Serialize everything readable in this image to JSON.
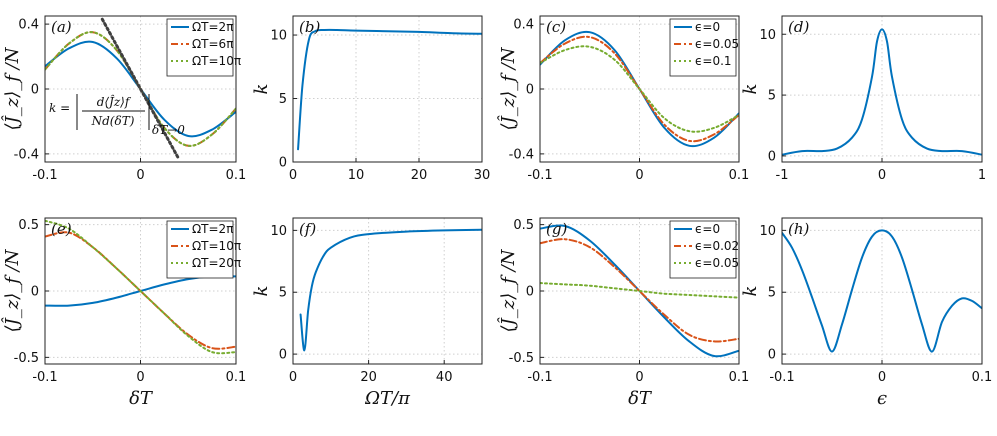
{
  "colors": {
    "blue": "#0072BD",
    "orange": "#D95319",
    "green": "#77AC30",
    "dark_gray": "#404040",
    "olive": "#9a8a3a"
  },
  "chart_data": [
    {
      "panel": "(a)",
      "type": "line",
      "xlabel": "",
      "ylabel": "⟨Ĵ_z⟩_f /N",
      "xlim": [
        -0.1,
        0.1
      ],
      "ylim": [
        -0.45,
        0.45
      ],
      "grid": true,
      "legend": "top-right",
      "xticks": [
        "-0.1",
        "0",
        "0.1"
      ],
      "xtick_values": [
        -0.1,
        0,
        0.1
      ],
      "yticks": [
        "0.4",
        "0",
        "-0.4"
      ],
      "ytick_values": [
        0.4,
        0,
        -0.4
      ],
      "annotation": "k = |d⟨Ĵ_z⟩_f / Nd(δT)| δT→0",
      "series": [
        {
          "name": "ΩT=2π",
          "color": "#0072BD",
          "dash": "solid",
          "x": [
            -0.1,
            -0.075,
            -0.05,
            -0.025,
            0,
            0.025,
            0.05,
            0.075,
            0.1
          ],
          "y": [
            0.14,
            0.25,
            0.29,
            0.19,
            0,
            -0.19,
            -0.29,
            -0.25,
            -0.14
          ]
        },
        {
          "name": "ΩT=6π",
          "color": "#D95319",
          "dash": "dashdot",
          "x": [
            -0.1,
            -0.075,
            -0.05,
            -0.025,
            0,
            0.025,
            0.05,
            0.075,
            0.1
          ],
          "y": [
            0.12,
            0.28,
            0.35,
            0.24,
            0,
            -0.24,
            -0.35,
            -0.28,
            -0.12
          ]
        },
        {
          "name": "ΩT=10π",
          "color": "#77AC30",
          "dash": "dotted",
          "x": [
            -0.1,
            -0.075,
            -0.05,
            -0.025,
            0,
            0.025,
            0.05,
            0.075,
            0.1
          ],
          "y": [
            0.12,
            0.28,
            0.35,
            0.24,
            0,
            -0.24,
            -0.35,
            -0.28,
            -0.12
          ]
        },
        {
          "name": "",
          "color": "#404040",
          "dash": "dotted",
          "x": [
            -0.04,
            0.04
          ],
          "y": [
            0.43,
            -0.43
          ]
        }
      ]
    },
    {
      "panel": "(b)",
      "type": "line",
      "xlabel": "",
      "ylabel": "k",
      "xlim": [
        0,
        30
      ],
      "ylim": [
        0,
        11.5
      ],
      "grid": true,
      "xticks": [
        "0",
        "10",
        "20",
        "30"
      ],
      "xtick_values": [
        0,
        10,
        20,
        30
      ],
      "yticks": [
        "0",
        "5",
        "10"
      ],
      "ytick_values": [
        0,
        5,
        10
      ],
      "series": [
        {
          "name": "",
          "color": "#0072BD",
          "dash": "solid",
          "x": [
            0.8,
            1.5,
            2.5,
            3.5,
            5,
            7,
            10,
            15,
            20,
            25,
            30
          ],
          "y": [
            1.0,
            6.0,
            9.6,
            10.3,
            10.4,
            10.4,
            10.35,
            10.3,
            10.25,
            10.15,
            10.1
          ]
        }
      ]
    },
    {
      "panel": "(c)",
      "type": "line",
      "xlabel": "",
      "ylabel": "⟨Ĵ_z⟩_f /N",
      "xlim": [
        -0.1,
        0.1
      ],
      "ylim": [
        -0.45,
        0.45
      ],
      "grid": true,
      "legend": "top-right",
      "xticks": [
        "-0.1",
        "0",
        "0.1"
      ],
      "xtick_values": [
        -0.1,
        0,
        0.1
      ],
      "yticks": [
        "0.4",
        "0",
        "-0.4"
      ],
      "ytick_values": [
        0.4,
        0,
        -0.4
      ],
      "series": [
        {
          "name": "ϵ=0",
          "color": "#0072BD",
          "dash": "solid",
          "x": [
            -0.1,
            -0.075,
            -0.05,
            -0.025,
            0,
            0.025,
            0.05,
            0.075,
            0.1
          ],
          "y": [
            0.15,
            0.3,
            0.35,
            0.24,
            0,
            -0.24,
            -0.35,
            -0.3,
            -0.15
          ]
        },
        {
          "name": "ϵ=0.05",
          "color": "#D95319",
          "dash": "dashdot",
          "x": [
            -0.1,
            -0.075,
            -0.05,
            -0.025,
            0,
            0.025,
            0.05,
            0.075,
            0.1
          ],
          "y": [
            0.16,
            0.28,
            0.32,
            0.22,
            0,
            -0.22,
            -0.32,
            -0.28,
            -0.16
          ]
        },
        {
          "name": "ϵ=0.1",
          "color": "#77AC30",
          "dash": "dotted",
          "x": [
            -0.1,
            -0.075,
            -0.05,
            -0.025,
            0,
            0.025,
            0.05,
            0.075,
            0.1
          ],
          "y": [
            0.16,
            0.24,
            0.26,
            0.18,
            0,
            -0.18,
            -0.26,
            -0.24,
            -0.16
          ]
        }
      ]
    },
    {
      "panel": "(d)",
      "type": "line",
      "xlabel": "",
      "ylabel": "k",
      "xlim": [
        -1,
        1
      ],
      "ylim": [
        -0.5,
        11.5
      ],
      "grid": true,
      "xticks": [
        "-1",
        "0",
        "1"
      ],
      "xtick_values": [
        -1,
        0,
        1
      ],
      "yticks": [
        "0",
        "5",
        "10"
      ],
      "ytick_values": [
        0,
        5,
        10
      ],
      "series": [
        {
          "name": "",
          "color": "#0072BD",
          "dash": "solid",
          "x": [
            -1,
            -0.8,
            -0.6,
            -0.45,
            -0.3,
            -0.2,
            -0.1,
            -0.05,
            0,
            0.05,
            0.1,
            0.2,
            0.3,
            0.45,
            0.6,
            0.8,
            1
          ],
          "y": [
            0.1,
            0.4,
            0.4,
            0.6,
            1.5,
            3.0,
            6.5,
            9.4,
            10.4,
            9.4,
            6.5,
            3.0,
            1.5,
            0.6,
            0.4,
            0.4,
            0.1
          ]
        }
      ]
    },
    {
      "panel": "(e)",
      "type": "line",
      "xlabel": "δT",
      "ylabel": "⟨Ĵ_z⟩_f /N",
      "xlim": [
        -0.1,
        0.1
      ],
      "ylim": [
        -0.55,
        0.55
      ],
      "grid": true,
      "legend": "top-right",
      "xticks": [
        "-0.1",
        "0",
        "0.1"
      ],
      "xtick_values": [
        -0.1,
        0,
        0.1
      ],
      "yticks": [
        "0.5",
        "0",
        "-0.5"
      ],
      "ytick_values": [
        0.5,
        0,
        -0.5
      ],
      "series": [
        {
          "name": "ΩT=2π",
          "color": "#0072BD",
          "dash": "solid",
          "x": [
            -0.1,
            -0.075,
            -0.05,
            -0.025,
            0,
            0.025,
            0.05,
            0.075,
            0.1
          ],
          "y": [
            -0.11,
            -0.11,
            -0.09,
            -0.05,
            0,
            0.05,
            0.09,
            0.11,
            0.11
          ]
        },
        {
          "name": "ΩT=10π",
          "color": "#D95319",
          "dash": "dashdot",
          "x": [
            -0.1,
            -0.075,
            -0.05,
            -0.025,
            0,
            0.025,
            0.05,
            0.075,
            0.1
          ],
          "y": [
            0.41,
            0.44,
            0.33,
            0.17,
            0,
            -0.17,
            -0.33,
            -0.43,
            -0.42
          ]
        },
        {
          "name": "ΩT=20π",
          "color": "#77AC30",
          "dash": "dotted",
          "x": [
            -0.1,
            -0.075,
            -0.05,
            -0.025,
            0,
            0.025,
            0.05,
            0.075,
            0.1
          ],
          "y": [
            0.53,
            0.47,
            0.33,
            0.17,
            0,
            -0.17,
            -0.34,
            -0.46,
            -0.46
          ]
        }
      ]
    },
    {
      "panel": "(f)",
      "type": "line",
      "xlabel": "ΩT/π",
      "ylabel": "k",
      "xlim": [
        0,
        50
      ],
      "ylim": [
        -0.8,
        11
      ],
      "grid": true,
      "xticks": [
        "0",
        "20",
        "40"
      ],
      "xtick_values": [
        0,
        20,
        40
      ],
      "yticks": [
        "0",
        "5",
        "10"
      ],
      "ytick_values": [
        0,
        5,
        10
      ],
      "series": [
        {
          "name": "",
          "color": "#0072BD",
          "dash": "solid",
          "x": [
            2,
            3,
            4,
            5,
            6,
            8,
            10,
            15,
            20,
            30,
            40,
            50
          ],
          "y": [
            3.2,
            0.3,
            3.5,
            5.5,
            6.6,
            7.9,
            8.6,
            9.4,
            9.7,
            9.9,
            10.0,
            10.05
          ]
        }
      ]
    },
    {
      "panel": "(g)",
      "type": "line",
      "xlabel": "δT",
      "ylabel": "⟨Ĵ_z⟩_f /N",
      "xlim": [
        -0.1,
        0.1
      ],
      "ylim": [
        -0.55,
        0.55
      ],
      "grid": true,
      "legend": "top-right",
      "xticks": [
        "-0.1",
        "0",
        "0.1"
      ],
      "xtick_values": [
        -0.1,
        0,
        0.1
      ],
      "yticks": [
        "0.5",
        "0",
        "-0.5"
      ],
      "ytick_values": [
        0.5,
        0,
        -0.5
      ],
      "series": [
        {
          "name": "ϵ=0",
          "color": "#0072BD",
          "dash": "solid",
          "x": [
            -0.1,
            -0.075,
            -0.05,
            -0.025,
            0,
            0.025,
            0.05,
            0.075,
            0.1
          ],
          "y": [
            0.47,
            0.49,
            0.38,
            0.2,
            0,
            -0.2,
            -0.38,
            -0.49,
            -0.45
          ]
        },
        {
          "name": "ϵ=0.02",
          "color": "#D95319",
          "dash": "dashdot",
          "x": [
            -0.1,
            -0.075,
            -0.05,
            -0.025,
            0,
            0.025,
            0.05,
            0.075,
            0.1
          ],
          "y": [
            0.36,
            0.39,
            0.33,
            0.18,
            0,
            -0.18,
            -0.33,
            -0.38,
            -0.36
          ]
        },
        {
          "name": "ϵ=0.05",
          "color": "#77AC30",
          "dash": "dotted",
          "x": [
            -0.1,
            -0.075,
            -0.05,
            -0.025,
            0,
            0.025,
            0.05,
            0.075,
            0.1
          ],
          "y": [
            0.06,
            0.05,
            0.04,
            0.02,
            0,
            -0.02,
            -0.03,
            -0.04,
            -0.05
          ]
        }
      ]
    },
    {
      "panel": "(h)",
      "type": "line",
      "xlabel": "ϵ",
      "ylabel": "k",
      "xlim": [
        -0.1,
        0.1
      ],
      "ylim": [
        -0.8,
        11
      ],
      "grid": true,
      "xticks": [
        "-0.1",
        "0",
        "0.1"
      ],
      "xtick_values": [
        -0.1,
        0,
        0.1
      ],
      "yticks": [
        "0",
        "5",
        "10"
      ],
      "ytick_values": [
        0,
        5,
        10
      ],
      "series": [
        {
          "name": "",
          "color": "#0072BD",
          "dash": "solid",
          "x": [
            -0.1,
            -0.09,
            -0.08,
            -0.07,
            -0.06,
            -0.05,
            -0.04,
            -0.03,
            -0.02,
            -0.01,
            0,
            0.01,
            0.02,
            0.03,
            0.04,
            0.05,
            0.06,
            0.07,
            0.08,
            0.09,
            0.1
          ],
          "y": [
            9.8,
            8.6,
            6.8,
            4.6,
            2.3,
            0.2,
            2.4,
            5.2,
            7.8,
            9.5,
            10.0,
            9.5,
            7.8,
            5.2,
            2.4,
            0.2,
            2.6,
            3.9,
            4.5,
            4.3,
            3.7
          ]
        }
      ]
    }
  ]
}
